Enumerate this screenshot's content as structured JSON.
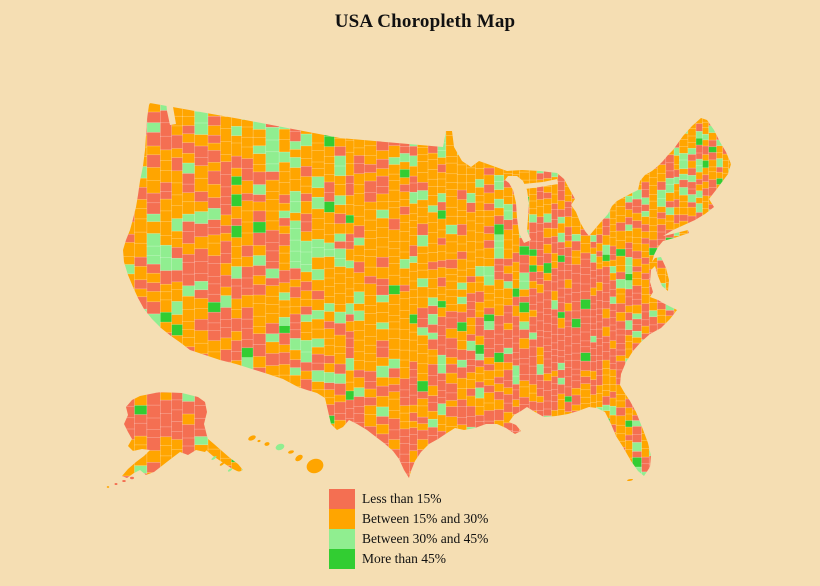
{
  "title": "USA Choropleth Map",
  "colors": {
    "background": "#f5deb3",
    "county_border": "rgba(255,255,255,0.45)"
  },
  "legend": {
    "items": [
      {
        "label": "Less than 15%",
        "color": "#f46f52"
      },
      {
        "label": "Between 15% and 30%",
        "color": "#ffa500"
      },
      {
        "label": "Between 30% and 45%",
        "color": "#90ee90"
      },
      {
        "label": "More than 45%",
        "color": "#32cd32"
      }
    ]
  },
  "chart_data": {
    "type": "choropleth",
    "title": "USA Choropleth Map",
    "geography": "United States counties (lower 48 with Alaska and Hawaii insets, Albers-style layout)",
    "value_classes": [
      {
        "label": "Less than 15%",
        "color": "#f46f52",
        "approx_share_of_counties": 0.29
      },
      {
        "label": "Between 15% and 30%",
        "color": "#ffa500",
        "approx_share_of_counties": 0.53
      },
      {
        "label": "Between 30% and 45%",
        "color": "#90ee90",
        "approx_share_of_counties": 0.14
      },
      {
        "label": "More than 45%",
        "color": "#32cd32",
        "approx_share_of_counties": 0.04
      }
    ],
    "legend_position": "bottom-center-left",
    "background_color": "#f5deb3",
    "notable_patterns": {
      "mostly_red_low_values": [
        "Appalachia and Southeast",
        "Deep South",
        "south Texas border",
        "Nevada-Utah interior",
        "most of Alaska"
      ],
      "mostly_orange_mid_values": [
        "Great Plains",
        "Midwest",
        "most of the West",
        "Hawaii"
      ],
      "green_high_values": [
        "Colorado Rockies",
        "New England",
        "coastal central California",
        "scattered counties"
      ]
    }
  }
}
